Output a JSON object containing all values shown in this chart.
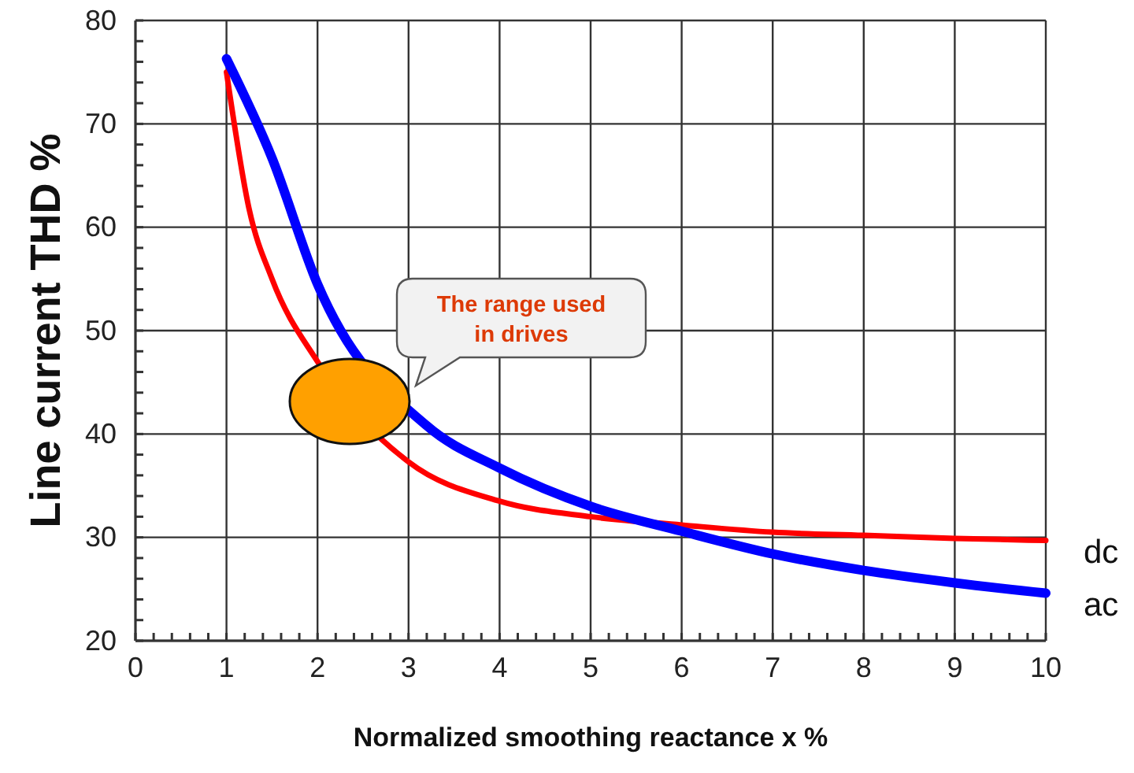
{
  "chart_data": {
    "type": "line",
    "xlabel": "Normalized smoothing reactance x %",
    "ylabel": "Line current THD %",
    "xlim": [
      0,
      10
    ],
    "ylim": [
      20,
      80
    ],
    "xticks": [
      0,
      {
        "value": 0.2,
        "label": null
      },
      {
        "value": 0.4,
        "label": null
      },
      {
        "value": 0.6,
        "label": null
      },
      {
        "value": 0.8,
        "label": null
      },
      1,
      {
        "value": 1.2,
        "label": null
      },
      {
        "value": 1.4,
        "label": null
      },
      {
        "value": 1.6,
        "label": null
      },
      {
        "value": 1.8,
        "label": null
      },
      2,
      {
        "value": 2.2,
        "label": null
      },
      {
        "value": 2.4,
        "label": null
      },
      {
        "value": 2.6,
        "label": null
      },
      {
        "value": 2.8,
        "label": null
      },
      3,
      {
        "value": 3.2,
        "label": null
      },
      {
        "value": 3.4,
        "label": null
      },
      {
        "value": 3.6,
        "label": null
      },
      {
        "value": 3.8,
        "label": null
      },
      4,
      {
        "value": 4.2,
        "label": null
      },
      {
        "value": 4.4,
        "label": null
      },
      {
        "value": 4.6,
        "label": null
      },
      {
        "value": 4.8,
        "label": null
      },
      5,
      {
        "value": 5.2,
        "label": null
      },
      {
        "value": 5.4,
        "label": null
      },
      {
        "value": 5.6,
        "label": null
      },
      {
        "value": 5.8,
        "label": null
      },
      6,
      {
        "value": 6.2,
        "label": null
      },
      {
        "value": 6.4,
        "label": null
      },
      {
        "value": 6.6,
        "label": null
      },
      {
        "value": 6.8,
        "label": null
      },
      7,
      {
        "value": 7.2,
        "label": null
      },
      {
        "value": 7.4,
        "label": null
      },
      {
        "value": 7.6,
        "label": null
      },
      {
        "value": 7.8,
        "label": null
      },
      8,
      {
        "value": 8.2,
        "label": null
      },
      {
        "value": 8.4,
        "label": null
      },
      {
        "value": 8.6,
        "label": null
      },
      {
        "value": 8.8,
        "label": null
      },
      9,
      {
        "value": 9.2,
        "label": null
      },
      {
        "value": 9.4,
        "label": null
      },
      {
        "value": 9.6,
        "label": null
      },
      {
        "value": 9.8,
        "label": null
      },
      10
    ],
    "yticks": [
      20,
      {
        "value": 22,
        "label": null
      },
      {
        "value": 24,
        "label": null
      },
      {
        "value": 26,
        "label": null
      },
      {
        "value": 28,
        "label": null
      },
      30,
      {
        "value": 32,
        "label": null
      },
      {
        "value": 34,
        "label": null
      },
      {
        "value": 36,
        "label": null
      },
      {
        "value": 38,
        "label": null
      },
      40,
      {
        "value": 42,
        "label": null
      },
      {
        "value": 44,
        "label": null
      },
      {
        "value": 46,
        "label": null
      },
      {
        "value": 48,
        "label": null
      },
      50,
      {
        "value": 52,
        "label": null
      },
      {
        "value": 54,
        "label": null
      },
      {
        "value": 56,
        "label": null
      },
      {
        "value": 58,
        "label": null
      },
      60,
      {
        "value": 62,
        "label": null
      },
      {
        "value": 64,
        "label": null
      },
      {
        "value": 66,
        "label": null
      },
      {
        "value": 68,
        "label": null
      },
      70,
      {
        "value": 72,
        "label": null
      },
      {
        "value": 74,
        "label": null
      },
      {
        "value": 76,
        "label": null
      },
      {
        "value": 78,
        "label": null
      },
      80
    ],
    "grid": true,
    "marker": "none",
    "line_style": "solid",
    "series": [
      {
        "name": "dc",
        "color": "#ff0000",
        "x": [
          1,
          1.25,
          1.5,
          2,
          2.5,
          3,
          4,
          5,
          6,
          7,
          8,
          9,
          10
        ],
        "values": [
          75,
          61.7,
          55,
          47,
          null,
          37.3,
          33.5,
          32,
          31.2,
          30.5,
          30.2,
          29.9,
          29.7
        ]
      },
      {
        "name": "ac",
        "color": "#0000ff",
        "x": [
          1,
          1.5,
          2,
          2.7,
          3.2,
          4,
          5,
          6,
          7,
          8,
          9,
          10
        ],
        "values": [
          76.3,
          66.7,
          54.5,
          null,
          40.8,
          36.7,
          33,
          30.6,
          28.4,
          26.8,
          25.6,
          24.6
        ]
      }
    ],
    "annotations": [
      "The range used in drives"
    ]
  }
}
